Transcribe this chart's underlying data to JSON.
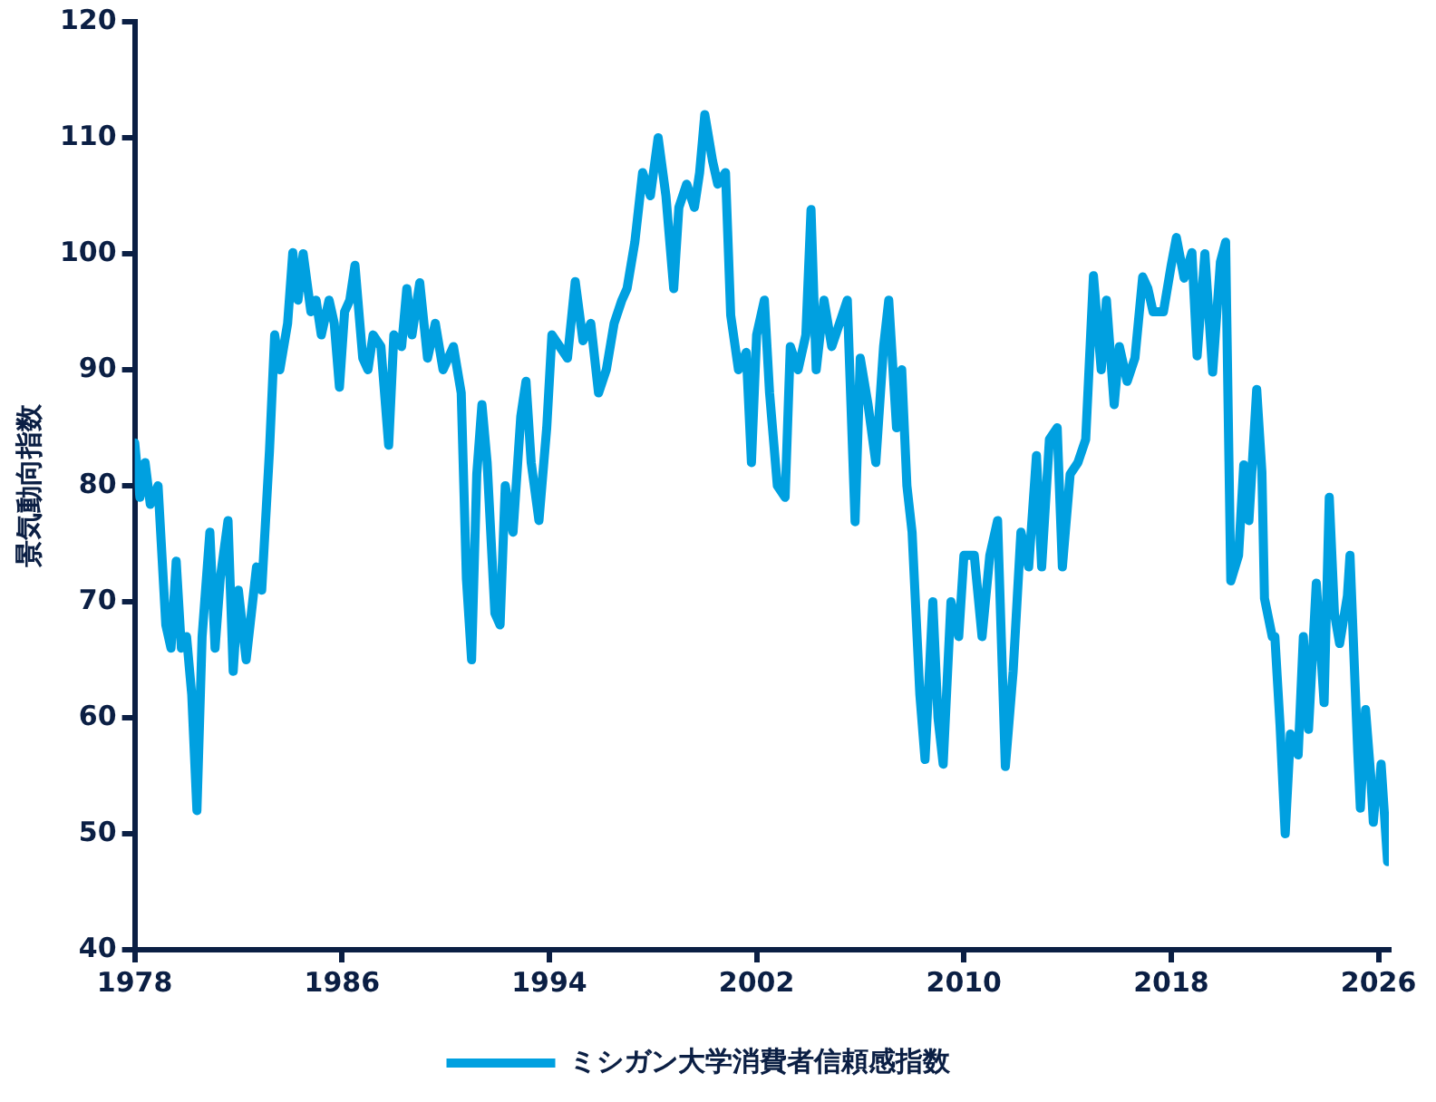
{
  "chart_data": {
    "type": "line",
    "ylabel": "景気動向指数",
    "xlim": [
      1978,
      2026.4
    ],
    "xticks": [
      1978,
      1986,
      1994,
      2002,
      2010,
      2018,
      2026
    ],
    "ylim": [
      40,
      120
    ],
    "yticks": [
      40,
      50,
      60,
      70,
      80,
      90,
      100,
      110,
      120
    ],
    "grid": false,
    "legend": "bottom",
    "marker": "none",
    "line_style": "solid",
    "x": [
      1978.0,
      1978.2,
      1978.4,
      1978.6,
      1978.9,
      1979.2,
      1979.4,
      1979.6,
      1979.8,
      1980.0,
      1980.2,
      1980.4,
      1980.6,
      1980.9,
      1981.1,
      1981.3,
      1981.6,
      1981.8,
      1982.0,
      1982.3,
      1982.7,
      1982.9,
      1983.2,
      1983.4,
      1983.6,
      1983.9,
      1984.1,
      1984.3,
      1984.5,
      1984.8,
      1985.0,
      1985.2,
      1985.5,
      1985.7,
      1985.9,
      1986.1,
      1986.3,
      1986.5,
      1986.8,
      1987.0,
      1987.2,
      1987.5,
      1987.8,
      1988.0,
      1988.3,
      1988.5,
      1988.7,
      1989.0,
      1989.3,
      1989.6,
      1989.9,
      1990.3,
      1990.6,
      1990.8,
      1991.0,
      1991.2,
      1991.4,
      1991.6,
      1991.9,
      1992.1,
      1992.3,
      1992.6,
      1992.9,
      1993.1,
      1993.3,
      1993.6,
      1993.9,
      1994.1,
      1994.4,
      1994.7,
      1995.0,
      1995.3,
      1995.6,
      1995.9,
      1996.2,
      1996.5,
      1996.8,
      1997.0,
      1997.3,
      1997.6,
      1997.9,
      1998.2,
      1998.5,
      1998.8,
      1999.0,
      1999.3,
      1999.6,
      1999.8,
      2000.0,
      2000.3,
      2000.5,
      2000.8,
      2001.0,
      2001.3,
      2001.6,
      2001.8,
      2002.0,
      2002.3,
      2002.5,
      2002.8,
      2003.1,
      2003.3,
      2003.6,
      2003.9,
      2004.1,
      2004.3,
      2004.6,
      2004.9,
      2005.2,
      2005.5,
      2005.8,
      2006.0,
      2006.3,
      2006.6,
      2006.9,
      2007.1,
      2007.4,
      2007.6,
      2007.8,
      2008.0,
      2008.3,
      2008.5,
      2008.8,
      2009.0,
      2009.2,
      2009.5,
      2009.8,
      2010.0,
      2010.4,
      2010.7,
      2011.0,
      2011.3,
      2011.6,
      2011.9,
      2012.2,
      2012.5,
      2012.8,
      2013.0,
      2013.3,
      2013.6,
      2013.8,
      2014.1,
      2014.4,
      2014.7,
      2015.0,
      2015.3,
      2015.5,
      2015.8,
      2016.0,
      2016.3,
      2016.6,
      2016.9,
      2017.1,
      2017.3,
      2017.7,
      2018.0,
      2018.2,
      2018.5,
      2018.8,
      2019.0,
      2019.3,
      2019.6,
      2019.9,
      2020.1,
      2020.3,
      2020.6,
      2020.8,
      2021.0,
      2021.3,
      2021.5,
      2021.6,
      2021.9,
      2022.0,
      2022.2,
      2022.4,
      2022.6,
      2022.9,
      2023.1,
      2023.3,
      2023.6,
      2023.9,
      2024.1,
      2024.3,
      2024.5,
      2024.8,
      2024.9,
      2025.2,
      2025.3,
      2025.5,
      2025.7,
      2025.8,
      2025.9,
      2026.0,
      2026.1,
      2026.35
    ],
    "series": [
      {
        "name": "ミシガン大学消費者信頼感指数",
        "color": "#00a0e0",
        "values": [
          83.7,
          79,
          82,
          78.4,
          80,
          68,
          66,
          73.5,
          66,
          67,
          62,
          52,
          67,
          76,
          66,
          72,
          77,
          64,
          71,
          65,
          73,
          71,
          83,
          93,
          90,
          94,
          100.1,
          96,
          100,
          95,
          96,
          93,
          96,
          94,
          88.5,
          95,
          96,
          99,
          91,
          90,
          93,
          92,
          83.5,
          93,
          92,
          97,
          93,
          97.5,
          91,
          94,
          90,
          92,
          88,
          72,
          65,
          81,
          87,
          82,
          69,
          68,
          80,
          76,
          86,
          89,
          82,
          77,
          85,
          93,
          92,
          91,
          97.6,
          92.5,
          94,
          88,
          90,
          94,
          96,
          97,
          101,
          107,
          105,
          110,
          105,
          97,
          104,
          106,
          104,
          107,
          112,
          108,
          106,
          107,
          94.7,
          90,
          91.5,
          82,
          93,
          96,
          88,
          80,
          79,
          92,
          90,
          93,
          103.8,
          90,
          96,
          92,
          94,
          96,
          76.9,
          91,
          87,
          82,
          92,
          96,
          85,
          90,
          80,
          76,
          62,
          56.4,
          70,
          60,
          56,
          70,
          67,
          74,
          74,
          67,
          74,
          77,
          55.8,
          64,
          76,
          73,
          82.6,
          73,
          84,
          85,
          73,
          81,
          82,
          84,
          98.1,
          90,
          96,
          87,
          92,
          89,
          91,
          98,
          97,
          95,
          95,
          99,
          101.4,
          97.9,
          100.1,
          91.2,
          100,
          89.8,
          99.3,
          101,
          71.8,
          74,
          81.8,
          77,
          88.3,
          81.2,
          70.3,
          67,
          67,
          59.4,
          50,
          58.6,
          56.8,
          67,
          59,
          71.6,
          61.3,
          79,
          69,
          66.4,
          70.5,
          74,
          57,
          52.2,
          60.7,
          55,
          51,
          53.6,
          52.9,
          56,
          47.6
        ]
      }
    ]
  }
}
